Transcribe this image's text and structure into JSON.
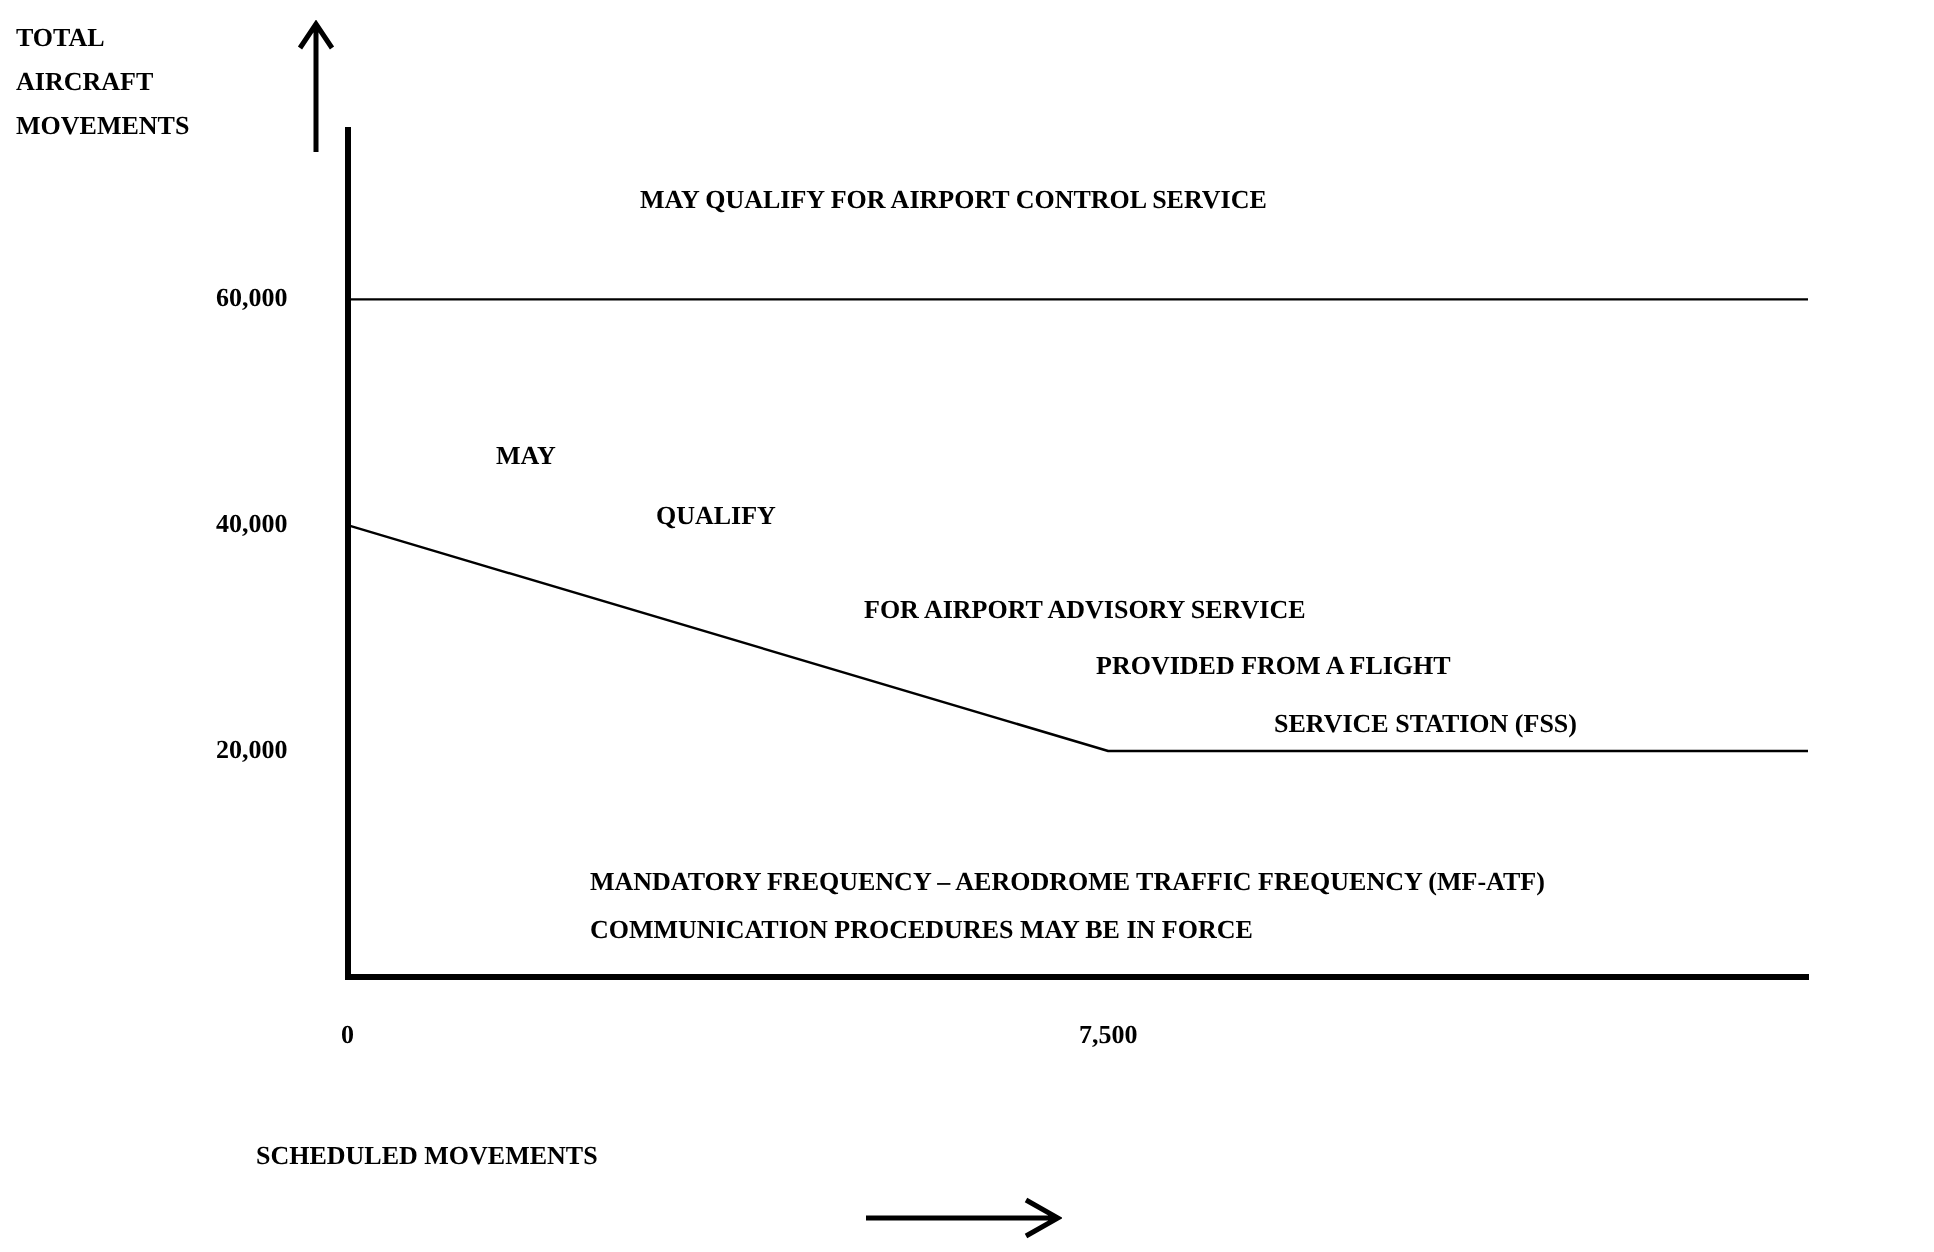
{
  "chart_data": {
    "type": "line",
    "xlabel": "SCHEDULED MOVEMENTS",
    "ylabel": "TOTAL AIRCRAFT MOVEMENTS",
    "marker": "none",
    "xlim": [
      0,
      14400
    ],
    "xticks": [
      0,
      {
        "value": 7500,
        "label": "7,500"
      }
    ],
    "ylim": [
      0,
      75000
    ],
    "yticks": [
      {
        "value": 0,
        "label": null
      },
      {
        "value": 20000,
        "label": "20,000"
      },
      {
        "value": 40000,
        "label": "40,000"
      },
      {
        "value": 60000,
        "label": "60,000"
      }
    ],
    "series": [
      {
        "color": "#000000",
        "x": [
          0,
          14400
        ],
        "values": [
          60000,
          60000
        ]
      },
      {
        "color": "#000000",
        "x": [
          0,
          7500,
          14400
        ],
        "values": [
          40000,
          20000,
          20000
        ]
      }
    ],
    "annotations": [
      "MAY QUALIFY FOR AIRPORT CONTROL SERVICE",
      "MAY",
      "QUALIFY",
      "FOR AIRPORT ADVISORY SERVICE",
      "PROVIDED FROM A FLIGHT",
      "SERVICE STATION (FSS)",
      "MANDATORY FREQUENCY – AERODROME TRAFFIC FREQUENCY (MF-ATF)",
      "COMMUNICATION PROCEDURES MAY BE IN FORCE"
    ]
  }
}
